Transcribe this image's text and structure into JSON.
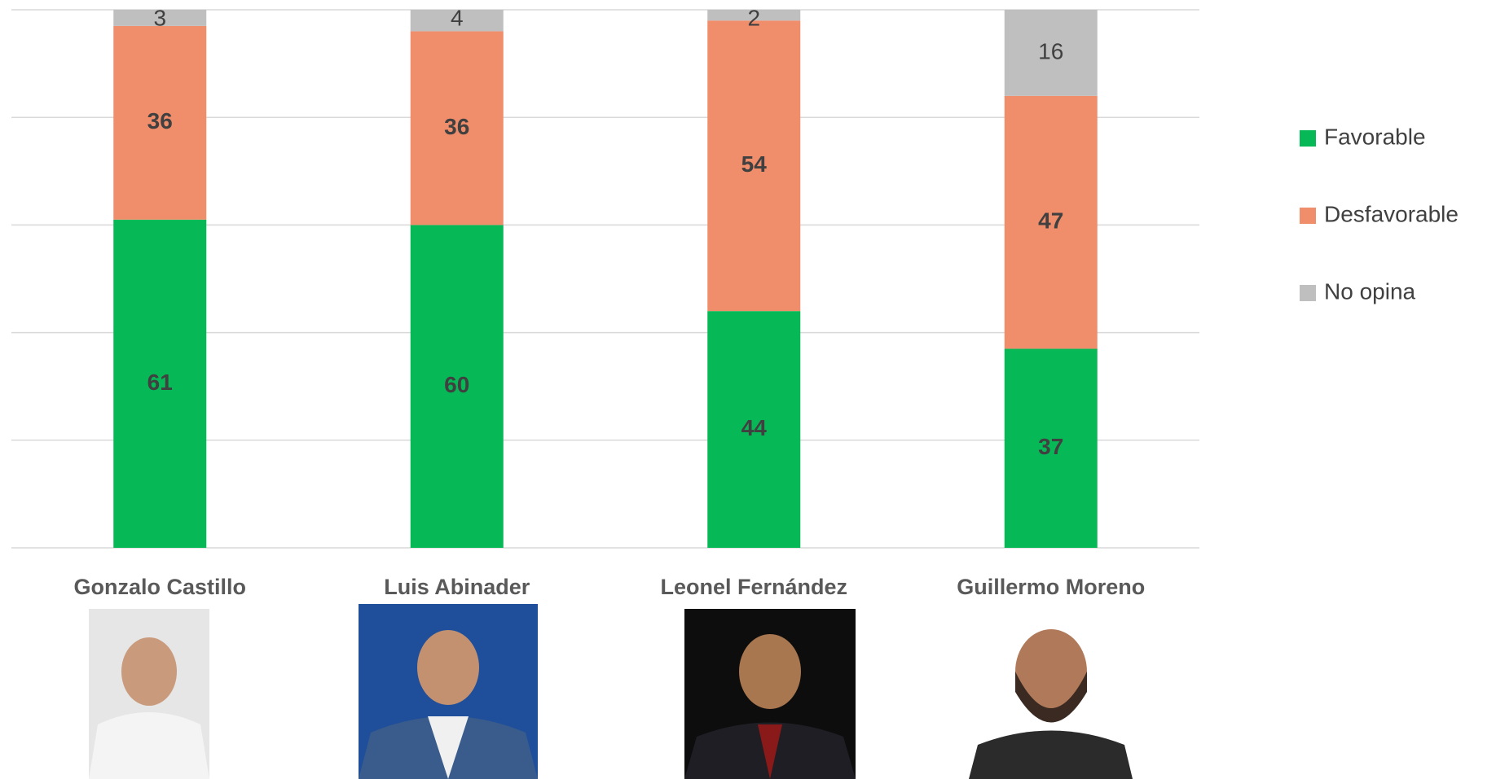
{
  "chart_data": {
    "type": "stacked_bar",
    "categories": [
      "Gonzalo Castillo",
      "Luis Abinader",
      "Leonel Fernández",
      "Guillermo Moreno"
    ],
    "series": [
      {
        "name": "Favorable",
        "color": "#07b956",
        "values": [
          61,
          60,
          44,
          37
        ]
      },
      {
        "name": "Desfavorable",
        "color": "#f08d6b",
        "values": [
          36,
          36,
          54,
          47
        ]
      },
      {
        "name": "No opina",
        "color": "#bfbfbf",
        "values": [
          3,
          4,
          2,
          16
        ]
      }
    ],
    "ylim": [
      0,
      100
    ],
    "yticks": [
      0,
      20,
      40,
      60,
      80,
      100
    ],
    "grid": true,
    "legend": "right"
  }
}
